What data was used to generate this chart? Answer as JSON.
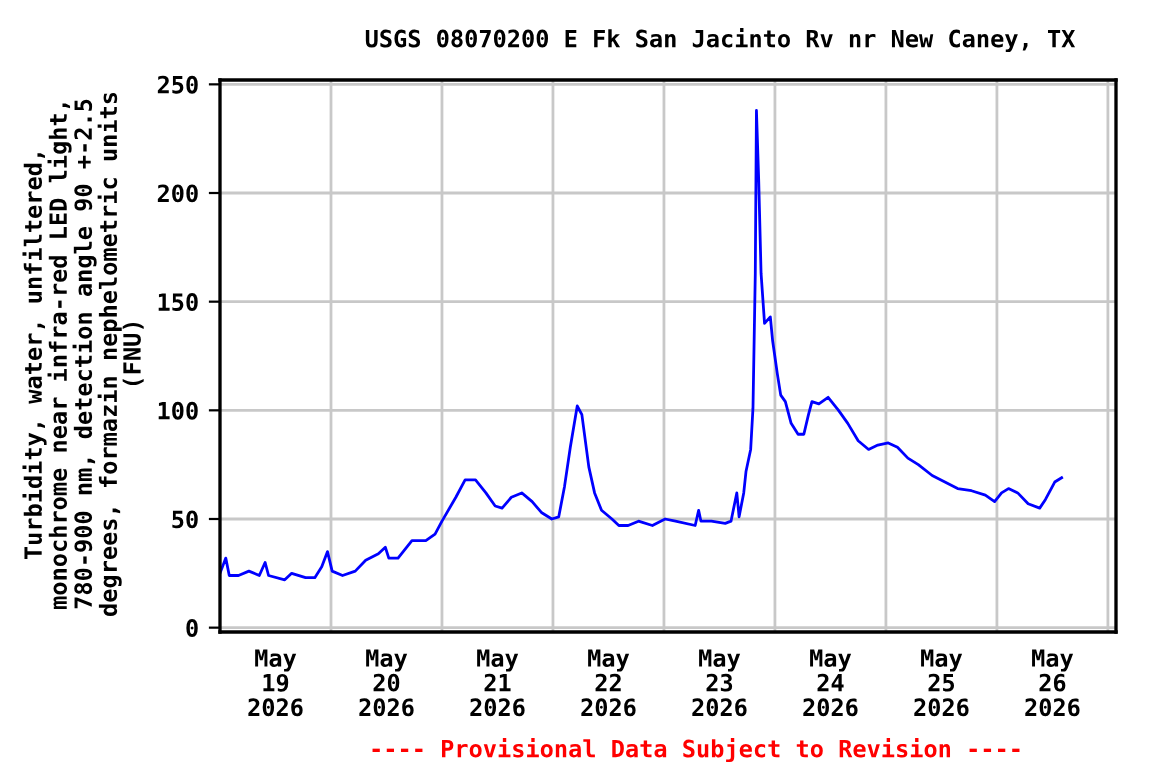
{
  "chart_data": {
    "type": "line",
    "title": "USGS 08070200 E Fk San Jacinto Rv nr New Caney, TX",
    "ylabel": "Turbidity, water, unfiltered,\nmonochrome near infra-red LED light,\n780-900 nm, detection angle 90 +-2.5\ndegrees, formazin nephelometric units\n(FNU)",
    "annotations": [
      "---- Provisional Data Subject to Revision ----"
    ],
    "x": [
      "2026-05-19T00:00",
      "2026-05-19T01:15",
      "2026-05-19T02:00",
      "2026-05-19T04:00",
      "2026-05-19T06:15",
      "2026-05-19T08:30",
      "2026-05-19T09:45",
      "2026-05-19T10:30",
      "2026-05-19T14:00",
      "2026-05-19T15:30",
      "2026-05-19T18:30",
      "2026-05-19T20:30",
      "2026-05-19T22:00",
      "2026-05-19T23:15",
      "2026-05-20T00:15",
      "2026-05-20T02:30",
      "2026-05-20T05:15",
      "2026-05-20T07:30",
      "2026-05-20T10:15",
      "2026-05-20T11:45",
      "2026-05-20T12:30",
      "2026-05-20T14:30",
      "2026-05-20T17:30",
      "2026-05-20T20:30",
      "2026-05-20T22:30",
      "2026-05-21T00:00",
      "2026-05-21T03:00",
      "2026-05-21T05:00",
      "2026-05-21T07:15",
      "2026-05-21T09:30",
      "2026-05-21T11:30",
      "2026-05-21T13:00",
      "2026-05-21T15:00",
      "2026-05-21T17:15",
      "2026-05-21T19:30",
      "2026-05-21T21:30",
      "2026-05-21T23:45",
      "2026-05-22T01:15",
      "2026-05-22T02:30",
      "2026-05-22T03:45",
      "2026-05-22T05:15",
      "2026-05-22T06:15",
      "2026-05-22T07:45",
      "2026-05-22T09:00",
      "2026-05-22T10:30",
      "2026-05-22T12:45",
      "2026-05-22T14:15",
      "2026-05-22T16:15",
      "2026-05-22T18:30",
      "2026-05-22T21:30",
      "2026-05-23T00:15",
      "2026-05-23T02:30",
      "2026-05-23T06:45",
      "2026-05-23T07:30",
      "2026-05-23T08:00",
      "2026-05-23T10:15",
      "2026-05-23T13:15",
      "2026-05-23T14:30",
      "2026-05-23T15:45",
      "2026-05-23T16:15",
      "2026-05-23T17:15",
      "2026-05-23T17:45",
      "2026-05-23T18:45",
      "2026-05-23T19:15",
      "2026-05-23T19:45",
      "2026-05-23T20:00",
      "2026-05-23T20:30",
      "2026-05-23T21:00",
      "2026-05-23T21:45",
      "2026-05-23T23:00",
      "2026-05-23T23:30",
      "2026-05-24T00:30",
      "2026-05-24T01:15",
      "2026-05-24T02:15",
      "2026-05-24T03:30",
      "2026-05-24T05:00",
      "2026-05-24T06:15",
      "2026-05-24T07:15",
      "2026-05-24T08:00",
      "2026-05-24T09:30",
      "2026-05-24T11:30",
      "2026-05-24T13:45",
      "2026-05-24T15:45",
      "2026-05-24T18:00",
      "2026-05-24T20:15",
      "2026-05-24T22:15",
      "2026-05-25T00:30",
      "2026-05-25T02:30",
      "2026-05-25T04:45",
      "2026-05-25T07:00",
      "2026-05-25T10:00",
      "2026-05-25T12:45",
      "2026-05-25T15:30",
      "2026-05-25T18:30",
      "2026-05-25T21:30",
      "2026-05-25T23:30",
      "2026-05-26T01:00",
      "2026-05-26T02:30",
      "2026-05-26T04:30",
      "2026-05-26T06:45",
      "2026-05-26T09:15",
      "2026-05-26T10:30",
      "2026-05-26T12:30",
      "2026-05-26T14:00"
    ],
    "series": [
      {
        "color": "#0000ff",
        "values": [
          25,
          32,
          24,
          24,
          26,
          24,
          30,
          24,
          22,
          25,
          23,
          23,
          28,
          35,
          26,
          24,
          26,
          31,
          34,
          37,
          32,
          32,
          40,
          40,
          43,
          49,
          60,
          68,
          68,
          62,
          56,
          55,
          60,
          62,
          58,
          53,
          50,
          51,
          65,
          83,
          102,
          98,
          74,
          62,
          54,
          50,
          47,
          47,
          49,
          47,
          50,
          49,
          47,
          54,
          49,
          49,
          48,
          49,
          62,
          51,
          62,
          72,
          82,
          101,
          163,
          238,
          205,
          163,
          140,
          143,
          132,
          117,
          107,
          104,
          94,
          89,
          89,
          98,
          104,
          103,
          106,
          100,
          94,
          86,
          82,
          84,
          85,
          83,
          78,
          75,
          70,
          67,
          64,
          63,
          61,
          58,
          62,
          64,
          62,
          57,
          55,
          59,
          67,
          69
        ]
      }
    ],
    "xlim": [
      "2026-05-19T00:00",
      "2026-05-27T01:45"
    ],
    "xticks": [
      {
        "value": "2026-05-19T12:00",
        "label": "May\n19\n2026"
      },
      {
        "value": "2026-05-20T00:00",
        "label": null
      },
      {
        "value": "2026-05-20T12:00",
        "label": "May\n20\n2026"
      },
      {
        "value": "2026-05-21T00:00",
        "label": null
      },
      {
        "value": "2026-05-21T12:00",
        "label": "May\n21\n2026"
      },
      {
        "value": "2026-05-22T00:00",
        "label": null
      },
      {
        "value": "2026-05-22T12:00",
        "label": "May\n22\n2026"
      },
      {
        "value": "2026-05-23T00:00",
        "label": null
      },
      {
        "value": "2026-05-23T12:00",
        "label": "May\n23\n2026"
      },
      {
        "value": "2026-05-24T00:00",
        "label": null
      },
      {
        "value": "2026-05-24T12:00",
        "label": "May\n24\n2026"
      },
      {
        "value": "2026-05-25T00:00",
        "label": null
      },
      {
        "value": "2026-05-25T12:00",
        "label": "May\n25\n2026"
      },
      {
        "value": "2026-05-26T00:00",
        "label": null
      },
      {
        "value": "2026-05-26T12:00",
        "label": "May\n26\n2026"
      },
      {
        "value": "2026-05-27T00:00",
        "label": null
      }
    ],
    "ylim": [
      -2,
      252
    ],
    "yticks": [
      0,
      50,
      100,
      150,
      200,
      250
    ],
    "grid": true,
    "line_style": "solid",
    "marker": "none"
  }
}
